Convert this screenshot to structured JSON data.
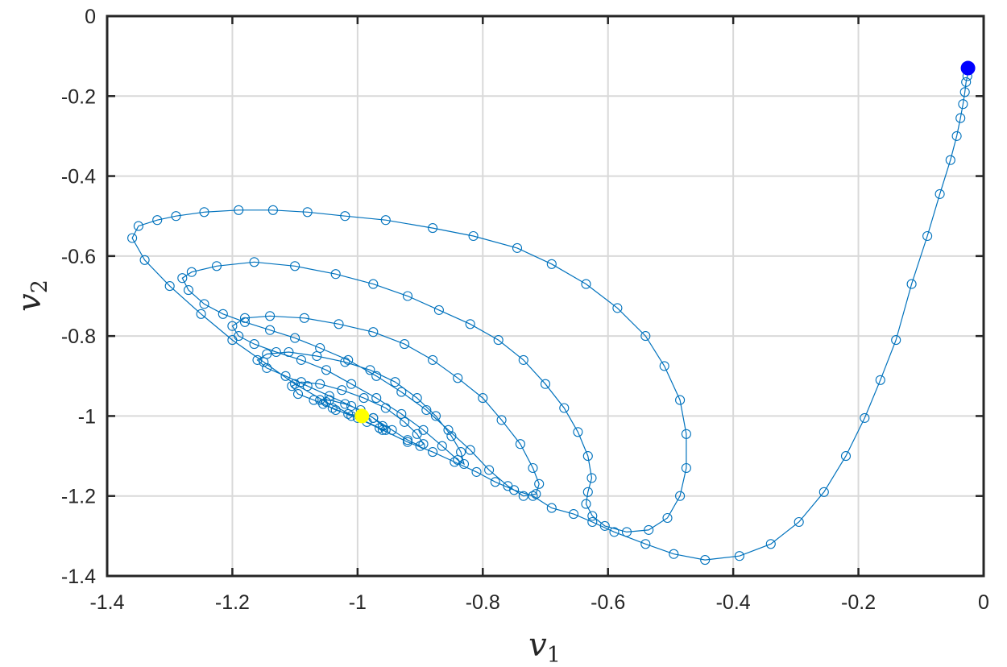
{
  "chart_data": {
    "type": "line",
    "title": "",
    "xlabel": "v",
    "xlabel_subscript": "1",
    "ylabel": "v",
    "ylabel_subscript": "2",
    "xlim": [
      -1.4,
      0
    ],
    "ylim": [
      -1.4,
      0
    ],
    "xticks": [
      -1.4,
      -1.2,
      -1.0,
      -0.8,
      -0.6,
      -0.4,
      -0.2,
      0
    ],
    "yticks": [
      0,
      -0.2,
      -0.4,
      -0.6,
      -0.8,
      -1.0,
      -1.2,
      -1.4
    ],
    "xtick_labels": [
      "-1.4",
      "-1.2",
      "-1",
      "-0.8",
      "-0.6",
      "-0.4",
      "-0.2",
      "0"
    ],
    "ytick_labels": [
      "0",
      "-0.2",
      "-0.4",
      "-0.6",
      "-0.8",
      "-1",
      "-1.2",
      "-1.4"
    ],
    "grid": true,
    "series": [
      {
        "marker": "open-circle",
        "color": "#0072BD",
        "points": [
          [
            -0.025,
            -0.13
          ],
          [
            -0.026,
            -0.15
          ],
          [
            -0.028,
            -0.165
          ],
          [
            -0.03,
            -0.19
          ],
          [
            -0.033,
            -0.22
          ],
          [
            -0.037,
            -0.255
          ],
          [
            -0.043,
            -0.3
          ],
          [
            -0.053,
            -0.36
          ],
          [
            -0.07,
            -0.445
          ],
          [
            -0.09,
            -0.55
          ],
          [
            -0.115,
            -0.67
          ],
          [
            -0.14,
            -0.81
          ],
          [
            -0.165,
            -0.91
          ],
          [
            -0.19,
            -1.005
          ],
          [
            -0.22,
            -1.1
          ],
          [
            -0.255,
            -1.19
          ],
          [
            -0.295,
            -1.265
          ],
          [
            -0.34,
            -1.32
          ],
          [
            -0.39,
            -1.35
          ],
          [
            -0.445,
            -1.36
          ],
          [
            -0.495,
            -1.345
          ],
          [
            -0.54,
            -1.32
          ],
          [
            -0.59,
            -1.29
          ],
          [
            -0.625,
            -1.265
          ],
          [
            -0.655,
            -1.245
          ],
          [
            -0.69,
            -1.23
          ],
          [
            -0.72,
            -1.2
          ],
          [
            -0.75,
            -1.185
          ],
          [
            -0.78,
            -1.165
          ],
          [
            -0.81,
            -1.14
          ],
          [
            -0.845,
            -1.115
          ],
          [
            -0.88,
            -1.09
          ],
          [
            -0.92,
            -1.065
          ],
          [
            -0.96,
            -1.035
          ],
          [
            -1.0,
            -1.005
          ],
          [
            -1.05,
            -0.965
          ],
          [
            -1.1,
            -0.92
          ],
          [
            -1.15,
            -0.865
          ],
          [
            -1.2,
            -0.81
          ],
          [
            -1.25,
            -0.745
          ],
          [
            -1.3,
            -0.675
          ],
          [
            -1.34,
            -0.61
          ],
          [
            -1.36,
            -0.555
          ],
          [
            -1.35,
            -0.525
          ],
          [
            -1.32,
            -0.51
          ],
          [
            -1.29,
            -0.5
          ],
          [
            -1.245,
            -0.49
          ],
          [
            -1.19,
            -0.485
          ],
          [
            -1.135,
            -0.485
          ],
          [
            -1.08,
            -0.49
          ],
          [
            -1.02,
            -0.5
          ],
          [
            -0.955,
            -0.51
          ],
          [
            -0.88,
            -0.53
          ],
          [
            -0.815,
            -0.55
          ],
          [
            -0.745,
            -0.58
          ],
          [
            -0.69,
            -0.62
          ],
          [
            -0.635,
            -0.67
          ],
          [
            -0.585,
            -0.73
          ],
          [
            -0.54,
            -0.8
          ],
          [
            -0.51,
            -0.875
          ],
          [
            -0.485,
            -0.96
          ],
          [
            -0.475,
            -1.045
          ],
          [
            -0.475,
            -1.13
          ],
          [
            -0.485,
            -1.2
          ],
          [
            -0.505,
            -1.255
          ],
          [
            -0.535,
            -1.285
          ],
          [
            -0.57,
            -1.29
          ],
          [
            -0.605,
            -1.275
          ],
          [
            -0.625,
            -1.25
          ],
          [
            -0.635,
            -1.22
          ],
          [
            -0.632,
            -1.19
          ],
          [
            -0.626,
            -1.155
          ],
          [
            -0.632,
            -1.1
          ],
          [
            -0.648,
            -1.04
          ],
          [
            -0.67,
            -0.98
          ],
          [
            -0.7,
            -0.92
          ],
          [
            -0.735,
            -0.86
          ],
          [
            -0.775,
            -0.81
          ],
          [
            -0.82,
            -0.77
          ],
          [
            -0.87,
            -0.735
          ],
          [
            -0.92,
            -0.7
          ],
          [
            -0.975,
            -0.67
          ],
          [
            -1.035,
            -0.645
          ],
          [
            -1.1,
            -0.625
          ],
          [
            -1.165,
            -0.615
          ],
          [
            -1.225,
            -0.625
          ],
          [
            -1.265,
            -0.64
          ],
          [
            -1.28,
            -0.655
          ],
          [
            -1.27,
            -0.685
          ],
          [
            -1.245,
            -0.72
          ],
          [
            -1.215,
            -0.745
          ],
          [
            -1.18,
            -0.765
          ],
          [
            -1.14,
            -0.785
          ],
          [
            -1.1,
            -0.805
          ],
          [
            -1.06,
            -0.83
          ],
          [
            -1.015,
            -0.86
          ],
          [
            -0.97,
            -0.9
          ],
          [
            -0.93,
            -0.94
          ],
          [
            -0.89,
            -0.985
          ],
          [
            -0.855,
            -1.035
          ],
          [
            -0.82,
            -1.085
          ],
          [
            -0.79,
            -1.135
          ],
          [
            -0.76,
            -1.175
          ],
          [
            -0.735,
            -1.2
          ],
          [
            -0.715,
            -1.195
          ],
          [
            -0.71,
            -1.17
          ],
          [
            -0.72,
            -1.13
          ],
          [
            -0.74,
            -1.07
          ],
          [
            -0.77,
            -1.01
          ],
          [
            -0.8,
            -0.955
          ],
          [
            -0.84,
            -0.905
          ],
          [
            -0.88,
            -0.86
          ],
          [
            -0.925,
            -0.82
          ],
          [
            -0.975,
            -0.79
          ],
          [
            -1.03,
            -0.77
          ],
          [
            -1.085,
            -0.755
          ],
          [
            -1.14,
            -0.75
          ],
          [
            -1.18,
            -0.755
          ],
          [
            -1.2,
            -0.775
          ],
          [
            -1.19,
            -0.8
          ],
          [
            -1.165,
            -0.82
          ],
          [
            -1.13,
            -0.84
          ],
          [
            -1.09,
            -0.86
          ],
          [
            -1.05,
            -0.885
          ],
          [
            -1.01,
            -0.92
          ],
          [
            -0.97,
            -0.955
          ],
          [
            -0.93,
            -0.995
          ],
          [
            -0.895,
            -1.035
          ],
          [
            -0.865,
            -1.075
          ],
          [
            -0.84,
            -1.11
          ],
          [
            -0.83,
            -1.12
          ],
          [
            -0.835,
            -1.09
          ],
          [
            -0.85,
            -1.05
          ],
          [
            -0.875,
            -1.0
          ],
          [
            -0.905,
            -0.955
          ],
          [
            -0.94,
            -0.915
          ],
          [
            -0.98,
            -0.885
          ],
          [
            -1.02,
            -0.865
          ],
          [
            -1.065,
            -0.85
          ],
          [
            -1.11,
            -0.84
          ],
          [
            -1.145,
            -0.845
          ],
          [
            -1.16,
            -0.86
          ],
          [
            -1.145,
            -0.88
          ],
          [
            -1.115,
            -0.9
          ],
          [
            -1.08,
            -0.925
          ],
          [
            -1.045,
            -0.95
          ],
          [
            -1.01,
            -0.975
          ],
          [
            -0.975,
            -1.005
          ],
          [
            -0.945,
            -1.035
          ],
          [
            -0.92,
            -1.06
          ],
          [
            -0.9,
            -1.075
          ],
          [
            -0.895,
            -1.07
          ],
          [
            -0.905,
            -1.045
          ],
          [
            -0.925,
            -1.015
          ],
          [
            -0.955,
            -0.98
          ],
          [
            -0.99,
            -0.955
          ],
          [
            -1.025,
            -0.935
          ],
          [
            -1.06,
            -0.92
          ],
          [
            -1.09,
            -0.915
          ],
          [
            -1.105,
            -0.925
          ],
          [
            -1.095,
            -0.945
          ],
          [
            -1.07,
            -0.96
          ],
          [
            -1.04,
            -0.98
          ],
          [
            -1.01,
            -1.0
          ],
          [
            -0.985,
            -1.015
          ],
          [
            -0.965,
            -1.03
          ],
          [
            -0.955,
            -1.035
          ],
          [
            -0.96,
            -1.025
          ],
          [
            -0.975,
            -1.005
          ],
          [
            -0.995,
            -0.985
          ],
          [
            -1.02,
            -0.97
          ],
          [
            -1.045,
            -0.96
          ],
          [
            -1.06,
            -0.96
          ],
          [
            -1.055,
            -0.97
          ],
          [
            -1.035,
            -0.985
          ],
          [
            -1.015,
            -0.995
          ],
          [
            -0.995,
            -1.0
          ]
        ]
      }
    ],
    "start_point": {
      "x": -0.025,
      "y": -0.13,
      "color": "#0000FF"
    },
    "end_point": {
      "x": -0.993,
      "y": -1.0,
      "color": "#FFFF00"
    },
    "colors": {
      "line": "#0072BD",
      "axes": "#262626",
      "grid": "#D9D9D9"
    }
  }
}
